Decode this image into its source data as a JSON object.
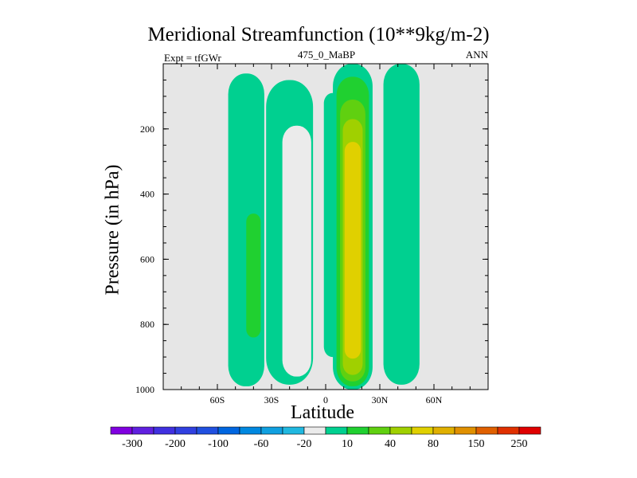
{
  "chart_data": {
    "type": "contour",
    "title": "Meridional Streamfunction (10**9kg/m-2)",
    "subtitle_left": "Expt = tfGWr",
    "subtitle_center": "475_0_MaBP",
    "subtitle_right": "ANN",
    "xlabel": "Latitude",
    "ylabel": "Pressure (in hPa)",
    "xlim": [
      -90,
      90
    ],
    "ylim": [
      1000,
      0
    ],
    "x_ticks": [
      {
        "value": -60,
        "label": "60S"
      },
      {
        "value": -30,
        "label": "30S"
      },
      {
        "value": 0,
        "label": "0"
      },
      {
        "value": 30,
        "label": "30N"
      },
      {
        "value": 60,
        "label": "60N"
      }
    ],
    "y_ticks": [
      {
        "value": 200,
        "label": "200"
      },
      {
        "value": 400,
        "label": "400"
      },
      {
        "value": 600,
        "label": "600"
      },
      {
        "value": 800,
        "label": "800"
      },
      {
        "value": 1000,
        "label": "1000"
      }
    ],
    "background_color": "#e6e6e6",
    "contour_levels": [
      -300,
      -250,
      -200,
      -150,
      -100,
      -80,
      -60,
      -40,
      -20,
      -10,
      10,
      20,
      40,
      60,
      80,
      100,
      150,
      200,
      250,
      300
    ],
    "colorbar_labels": [
      "-300",
      "-200",
      "-100",
      "-60",
      "-20",
      "10",
      "40",
      "80",
      "150",
      "250"
    ],
    "colorbar_colors": [
      "#8000e0",
      "#6020e0",
      "#4030e0",
      "#3040e0",
      "#2050e0",
      "#0066e0",
      "#0088e0",
      "#10a0e0",
      "#20b8e0",
      "#ebebeb",
      "#00d090",
      "#20d030",
      "#60d010",
      "#a0d000",
      "#e0d000",
      "#e0b000",
      "#e09000",
      "#e06000",
      "#e03000",
      "#e00000"
    ],
    "cells": [
      {
        "level": 10,
        "lat_center": -44,
        "lat_halfwidth": 10,
        "p_top": 30,
        "p_bottom": 990
      },
      {
        "level": 20,
        "lat_center": -40,
        "lat_halfwidth": 4,
        "p_top": 460,
        "p_bottom": 840
      },
      {
        "level": -10,
        "lat_center": -20,
        "lat_halfwidth": 13,
        "p_top": 50,
        "p_bottom": 985
      },
      {
        "level": -20,
        "lat_center": -16,
        "lat_halfwidth": 8,
        "p_top": 190,
        "p_bottom": 960
      },
      {
        "level": -10,
        "lat_center": 4,
        "lat_halfwidth": 5,
        "p_top": 90,
        "p_bottom": 900
      },
      {
        "level": 10,
        "lat_center": 15,
        "lat_halfwidth": 11,
        "p_top": 0,
        "p_bottom": 1000
      },
      {
        "level": 20,
        "lat_center": 15,
        "lat_halfwidth": 9,
        "p_top": 40,
        "p_bottom": 990
      },
      {
        "level": 40,
        "lat_center": 15,
        "lat_halfwidth": 7,
        "p_top": 110,
        "p_bottom": 975
      },
      {
        "level": 60,
        "lat_center": 15,
        "lat_halfwidth": 5.5,
        "p_top": 170,
        "p_bottom": 955
      },
      {
        "level": 80,
        "lat_center": 15,
        "lat_halfwidth": 4.5,
        "p_top": 240,
        "p_bottom": 905
      },
      {
        "level": -10,
        "lat_center": 42,
        "lat_halfwidth": 10,
        "p_top": 0,
        "p_bottom": 985
      }
    ]
  }
}
